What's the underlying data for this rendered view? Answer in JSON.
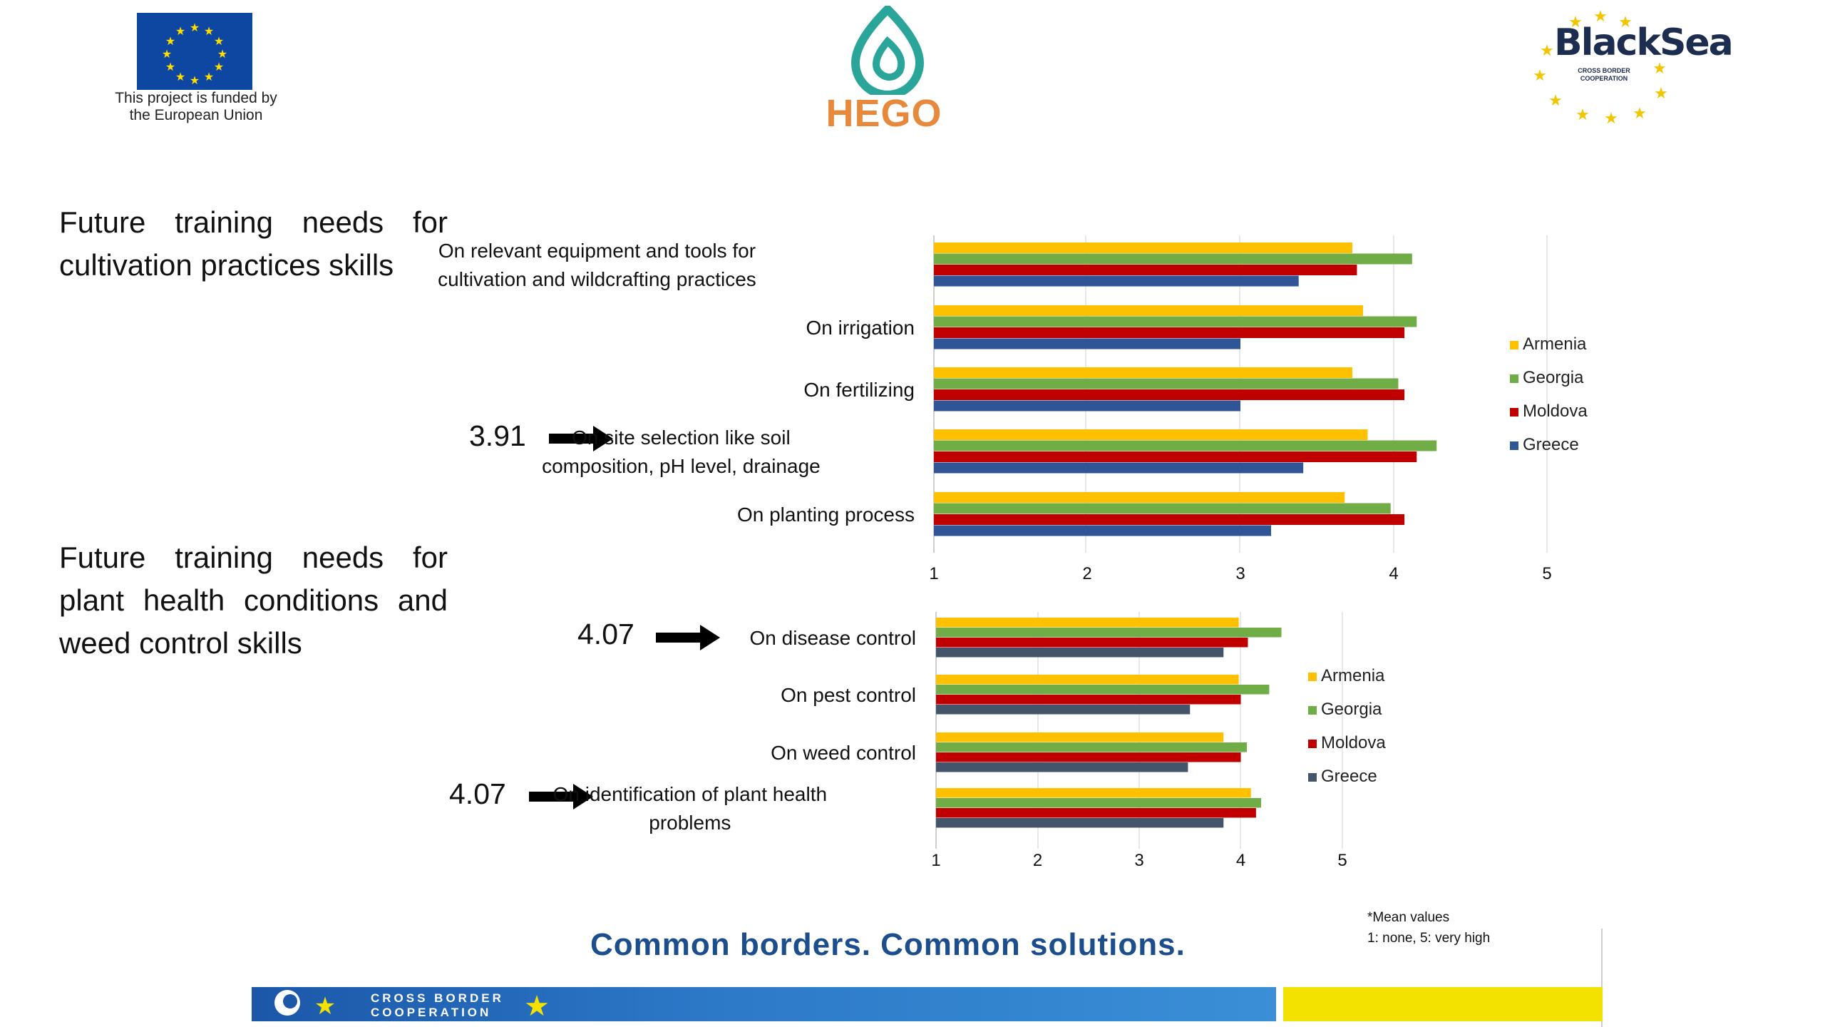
{
  "logos": {
    "eu_caption_line1": "This project is funded by",
    "eu_caption_line2": "the European Union",
    "hego": "HEGO",
    "blacksea_title": "BlackSea",
    "blacksea_sub1": "CROSS BORDER",
    "blacksea_sub2": "COOPERATION"
  },
  "headings": {
    "cultivation": "Future training needs for cultivation practices skills",
    "plant_health": "Future training needs for plant health conditions and weed control skills"
  },
  "annotations": {
    "site_selection": "3.91",
    "disease_control": "4.07",
    "identification": "4.07"
  },
  "footer": {
    "slogan": "Common borders. Common solutions.",
    "note_line1": "*Mean values",
    "note_line2": "1: none, 5: very high",
    "cbc_line1": "CROSS BORDER",
    "cbc_line2": "COOPERATION"
  },
  "colors": {
    "Armenia": "#ffc000",
    "Georgia": "#70ad47",
    "Moldova": "#c00000",
    "Greece": "#2f5597",
    "Greece_chart2": "#44546a"
  },
  "chart_data": [
    {
      "type": "bar",
      "orientation": "horizontal",
      "categories": [
        "On relevant equipment and tools for cultivation and wildcrafting practices",
        "On irrigation",
        "On fertilizing",
        "On site selection like soil composition, pH level, drainage",
        "On planting process"
      ],
      "category_lines": [
        [
          "On relevant equipment and tools for",
          "cultivation and wildcrafting practices"
        ],
        [
          "On irrigation"
        ],
        [
          "On fertilizing"
        ],
        [
          "On site selection like soil",
          "composition, pH level, drainage"
        ],
        [
          "On planting process"
        ]
      ],
      "series": [
        {
          "name": "Armenia",
          "values": [
            3.73,
            3.8,
            3.73,
            3.83,
            3.68
          ]
        },
        {
          "name": "Georgia",
          "values": [
            4.12,
            4.15,
            4.03,
            4.28,
            3.98
          ]
        },
        {
          "name": "Moldova",
          "values": [
            3.76,
            4.07,
            4.07,
            4.15,
            4.07
          ]
        },
        {
          "name": "Greece",
          "values": [
            3.38,
            3.0,
            3.0,
            3.41,
            3.2
          ]
        }
      ],
      "xlim": [
        1,
        5
      ],
      "xticks": [
        "1",
        "2",
        "3",
        "4",
        "5"
      ],
      "legend": "right",
      "grid": "vertical"
    },
    {
      "type": "bar",
      "orientation": "horizontal",
      "categories": [
        "On disease control",
        "On pest control",
        "On weed control",
        "On identification of plant health problems"
      ],
      "category_lines": [
        [
          "On disease control"
        ],
        [
          "On pest control"
        ],
        [
          "On weed control"
        ],
        [
          "On identification of plant health",
          "problems"
        ]
      ],
      "series": [
        {
          "name": "Armenia",
          "values": [
            3.98,
            3.98,
            3.83,
            4.1
          ]
        },
        {
          "name": "Georgia",
          "values": [
            4.4,
            4.28,
            4.06,
            4.2
          ]
        },
        {
          "name": "Moldova",
          "values": [
            4.07,
            4.0,
            4.0,
            4.15
          ]
        },
        {
          "name": "Greece",
          "values": [
            3.83,
            3.5,
            3.48,
            3.83
          ]
        }
      ],
      "xlim": [
        1,
        5
      ],
      "xticks": [
        "1",
        "2",
        "3",
        "4",
        "5"
      ],
      "legend": "right",
      "grid": "vertical"
    }
  ]
}
